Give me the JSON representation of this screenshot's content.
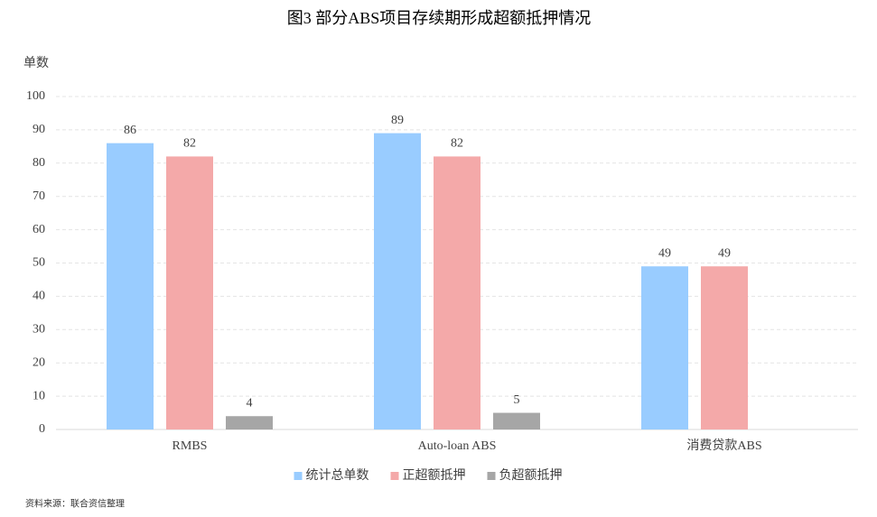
{
  "chart_data": {
    "type": "bar",
    "title": "图3 部分ABS项目存续期形成超额抵押情况",
    "y_label": "单数",
    "categories": [
      "RMBS",
      "Auto-loan ABS",
      "消费贷款ABS"
    ],
    "series": [
      {
        "name": "统计总单数",
        "color": "#99ccff",
        "values": [
          86,
          89,
          49
        ]
      },
      {
        "name": "正超额抵押",
        "color": "#f4a9a9",
        "values": [
          82,
          82,
          49
        ]
      },
      {
        "name": "负超额抵押",
        "color": "#a6a6a6",
        "values": [
          4,
          5,
          null
        ]
      }
    ],
    "ylim": [
      0,
      100
    ],
    "yticks": [
      0,
      10,
      20,
      30,
      40,
      50,
      60,
      70,
      80,
      90,
      100
    ],
    "grid": true,
    "source": "资料来源：联合资信整理"
  }
}
